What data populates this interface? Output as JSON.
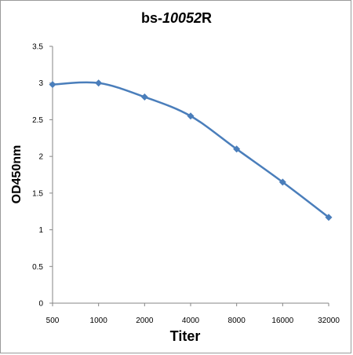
{
  "chart_data": {
    "type": "line",
    "title_prefix": "bs-",
    "title_italic": "10052",
    "title_suffix": "R",
    "xlabel": "Titer",
    "ylabel": "OD450nm",
    "categories": [
      "500",
      "1000",
      "2000",
      "4000",
      "8000",
      "16000",
      "32000"
    ],
    "values": [
      2.98,
      3.0,
      2.81,
      2.55,
      2.1,
      1.65,
      1.17
    ],
    "ylim": [
      0,
      3.5
    ],
    "yticks": [
      "0",
      "0.5",
      "1",
      "1.5",
      "2",
      "2.5",
      "3",
      "3.5"
    ],
    "series_color": "#4a7ebb",
    "grid": false,
    "smooth": true,
    "marker": "diamond"
  }
}
